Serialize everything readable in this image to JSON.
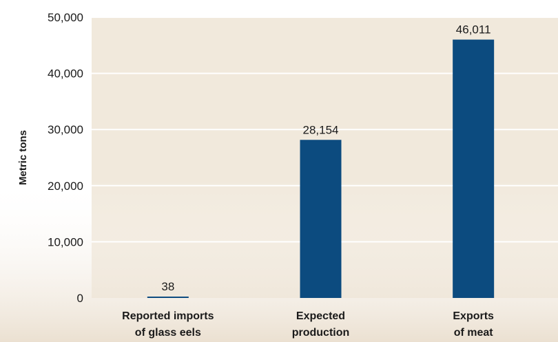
{
  "chart_data": {
    "type": "bar",
    "title": "",
    "xlabel": "",
    "ylabel": "Metric tons",
    "categories": [
      [
        "Reported imports",
        "of glass eels"
      ],
      [
        "Expected",
        "production"
      ],
      [
        "Exports",
        "of meat"
      ]
    ],
    "values": [
      38,
      28154,
      46011
    ],
    "value_labels": [
      "38",
      "28,154",
      "46,011"
    ],
    "ylim": [
      0,
      50000
    ],
    "yticks": [
      0,
      10000,
      20000,
      30000,
      40000,
      50000
    ],
    "ytick_labels": [
      "0",
      "10,000",
      "20,000",
      "30,000",
      "40,000",
      "50,000"
    ],
    "grid": true,
    "legend": "none"
  },
  "colors": {
    "bar": "#0c4b7f",
    "plot_background": "#f1e9dc",
    "gridline": "#ffffff",
    "lower_texture": "#ece2d4"
  }
}
